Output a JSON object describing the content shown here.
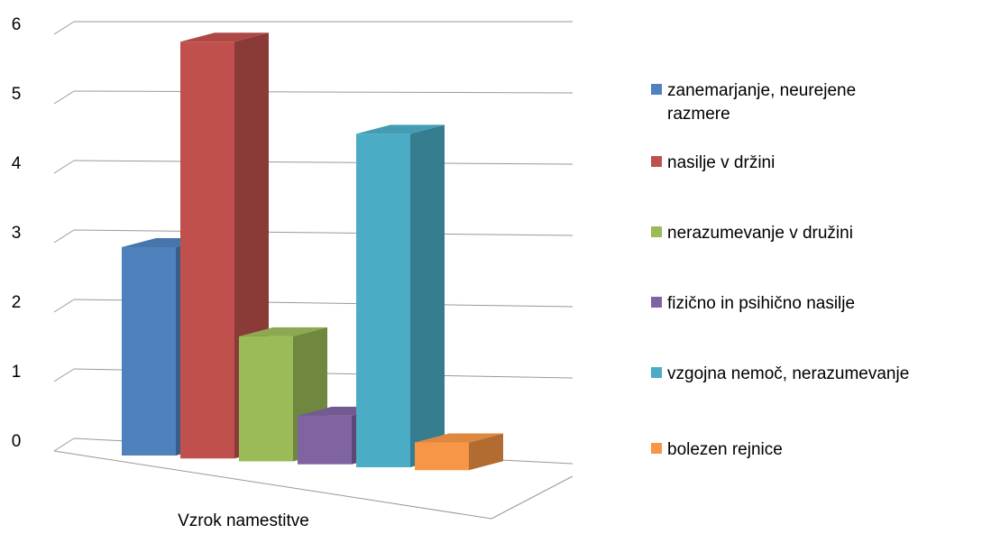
{
  "chart_data": {
    "type": "bar3d",
    "x_label": "Vzrok namestitve",
    "series": [
      {
        "name": "zanemarjanje, neurejene razmere",
        "color": "#4f81bd",
        "values": [
          3
        ]
      },
      {
        "name": "nasilje v držini",
        "color": "#c0504d",
        "values": [
          6
        ]
      },
      {
        "name": "nerazumevanje v družini",
        "color": "#9bbb59",
        "values": [
          1.8
        ]
      },
      {
        "name": "fizično in psihično nasilje",
        "color": "#8064a2",
        "values": [
          0.7
        ]
      },
      {
        "name": "vzgojna nemoč, nerazumevanje",
        "color": "#4bacc6",
        "values": [
          4.8
        ]
      },
      {
        "name": "bolezen rejnice",
        "color": "#f79646",
        "values": [
          0.4
        ]
      }
    ],
    "ylim": [
      0,
      6
    ],
    "yticks": [
      0,
      1,
      2,
      3,
      4,
      5,
      6
    ],
    "grid": true,
    "legend": "right"
  }
}
